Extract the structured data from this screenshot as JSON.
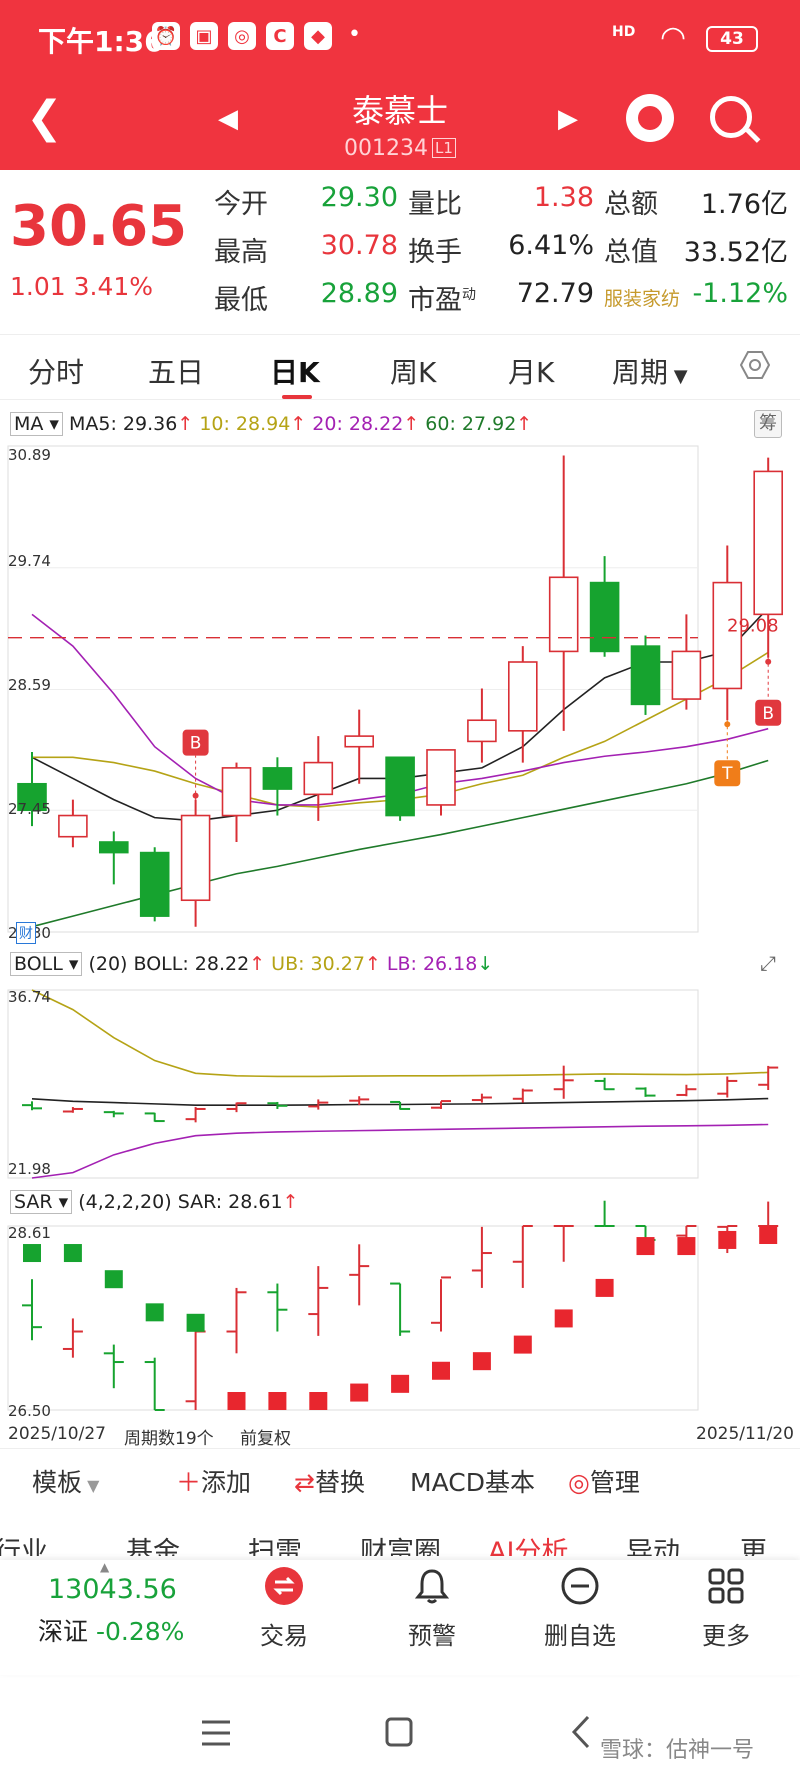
{
  "status_bar": {
    "time": "下午1:36",
    "network": "HD",
    "battery": "43"
  },
  "nav": {
    "title": "泰慕士",
    "code": "001234",
    "board_badge": "L1"
  },
  "quote": {
    "price": "30.65",
    "change": "1.01",
    "change_pct": "3.41%",
    "stats": [
      {
        "label": "今开",
        "value": "29.30",
        "color": "#18a23a"
      },
      {
        "label": "最高",
        "value": "30.78",
        "color": "#e8353c"
      },
      {
        "label": "最低",
        "value": "28.89",
        "color": "#18a23a"
      },
      {
        "label": "量比",
        "value": "1.38",
        "color": "#e8353c"
      },
      {
        "label": "换手",
        "value": "6.41%",
        "color": "#222222"
      },
      {
        "label": "市盈",
        "value": "72.79",
        "color": "#222222"
      },
      {
        "label": "总额",
        "value": "1.76亿",
        "color": "#222222"
      },
      {
        "label": "总值",
        "value": "33.52亿",
        "color": "#222222"
      },
      {
        "label": "服装家纺",
        "value": "-1.12%",
        "color": "#18a23a"
      }
    ],
    "pe_superscript": "动"
  },
  "tabs": [
    "分时",
    "五日",
    "日K",
    "周K",
    "月K",
    "周期"
  ],
  "active_tab": "日K",
  "main_chart": {
    "indicator": "MA",
    "ma": [
      {
        "label": "MA5: 29.36",
        "color": "#222222"
      },
      {
        "label": "10: 28.94",
        "color": "#b5a316"
      },
      {
        "label": "20: 28.22",
        "color": "#a321b3"
      },
      {
        "label": "60: 27.92",
        "color": "#1f7a2a"
      }
    ],
    "chip_button": "筹",
    "y_ticks": [
      "30.89",
      "29.74",
      "28.59",
      "27.45",
      "26.30"
    ],
    "price_line": "29.08",
    "signal_B": "B",
    "signal_T": "T",
    "fin_badge": "财"
  },
  "boll": {
    "label": "BOLL",
    "params": "(20)",
    "values": [
      {
        "label": "BOLL: 28.22",
        "color": "#222222"
      },
      {
        "label": "UB: 30.27",
        "color": "#b5a316"
      },
      {
        "label": "LB: 26.18",
        "color": "#a321b3"
      }
    ],
    "y_top": "36.74",
    "y_bottom": "21.98",
    "expand_icon": "expand-icon"
  },
  "sar": {
    "label": "SAR",
    "params": "(4,2,2,20)",
    "value": "SAR: 28.61",
    "y_top": "28.61",
    "y_bottom": "26.50"
  },
  "dates": {
    "start": "2025/10/27",
    "period_count": "周期数19个",
    "adjust": "前复权",
    "end": "2025/11/20"
  },
  "chart_data": {
    "type": "candlestick",
    "period": "日K",
    "x_range": [
      "2025/10/27",
      "2025/11/20"
    ],
    "ylim": [
      26.3,
      30.89
    ],
    "candles": [
      {
        "o": 27.7,
        "h": 28.0,
        "l": 27.3,
        "c": 27.45
      },
      {
        "o": 27.2,
        "h": 27.55,
        "l": 27.1,
        "c": 27.4
      },
      {
        "o": 27.15,
        "h": 27.25,
        "l": 26.75,
        "c": 27.05
      },
      {
        "o": 27.05,
        "h": 27.1,
        "l": 26.4,
        "c": 26.45
      },
      {
        "o": 26.6,
        "h": 27.55,
        "l": 26.35,
        "c": 27.4
      },
      {
        "o": 27.4,
        "h": 27.9,
        "l": 27.15,
        "c": 27.85
      },
      {
        "o": 27.85,
        "h": 27.95,
        "l": 27.4,
        "c": 27.65
      },
      {
        "o": 27.6,
        "h": 28.15,
        "l": 27.35,
        "c": 27.9
      },
      {
        "o": 28.05,
        "h": 28.4,
        "l": 27.7,
        "c": 28.15
      },
      {
        "o": 27.95,
        "h": 27.95,
        "l": 27.35,
        "c": 27.4
      },
      {
        "o": 27.5,
        "h": 28.0,
        "l": 27.4,
        "c": 28.02
      },
      {
        "o": 28.1,
        "h": 28.6,
        "l": 27.9,
        "c": 28.3
      },
      {
        "o": 28.2,
        "h": 29.0,
        "l": 27.9,
        "c": 28.85
      },
      {
        "o": 28.95,
        "h": 30.8,
        "l": 28.2,
        "c": 29.65
      },
      {
        "o": 29.6,
        "h": 29.85,
        "l": 28.9,
        "c": 28.95
      },
      {
        "o": 29.0,
        "h": 29.1,
        "l": 28.35,
        "c": 28.45
      },
      {
        "o": 28.5,
        "h": 29.3,
        "l": 28.4,
        "c": 28.95
      },
      {
        "o": 28.6,
        "h": 29.95,
        "l": 28.3,
        "c": 29.6
      },
      {
        "o": 29.3,
        "h": 30.78,
        "l": 28.89,
        "c": 30.65
      }
    ],
    "ma_lines": [
      {
        "name": "MA5",
        "color": "#222222",
        "values": [
          27.95,
          27.75,
          27.55,
          27.38,
          27.35,
          27.4,
          27.45,
          27.6,
          27.75,
          27.75,
          27.8,
          27.85,
          28.05,
          28.4,
          28.7,
          28.85,
          28.85,
          28.95,
          29.36
        ]
      },
      {
        "name": "MA10",
        "color": "#b5a316",
        "values": [
          27.95,
          27.95,
          27.9,
          27.82,
          27.7,
          27.6,
          27.5,
          27.48,
          27.52,
          27.55,
          27.6,
          27.7,
          27.78,
          27.95,
          28.1,
          28.3,
          28.5,
          28.7,
          28.94
        ]
      },
      {
        "name": "MA20",
        "color": "#a321b3",
        "values": [
          29.3,
          29.0,
          28.55,
          28.05,
          27.75,
          27.55,
          27.5,
          27.5,
          27.55,
          27.6,
          27.7,
          27.75,
          27.82,
          27.9,
          27.96,
          28.0,
          28.05,
          28.12,
          28.22
        ]
      },
      {
        "name": "MA60",
        "color": "#1f7a2a",
        "values": [
          26.35,
          26.45,
          26.55,
          26.65,
          26.75,
          26.85,
          26.92,
          27.0,
          27.08,
          27.15,
          27.22,
          27.3,
          27.38,
          27.46,
          27.54,
          27.62,
          27.7,
          27.8,
          27.92
        ]
      }
    ],
    "boll_lines": [
      {
        "name": "BOLL",
        "color": "#222222",
        "values": [
          28.2,
          28.0,
          27.9,
          27.8,
          27.7,
          27.7,
          27.7,
          27.72,
          27.75,
          27.75,
          27.78,
          27.8,
          27.85,
          27.9,
          27.95,
          28.0,
          28.05,
          28.12,
          28.22
        ]
      },
      {
        "name": "UB",
        "color": "#b5a316",
        "values": [
          36.74,
          35.2,
          33.0,
          31.2,
          30.2,
          30.0,
          29.95,
          29.95,
          29.98,
          30.0,
          30.0,
          30.02,
          30.05,
          30.1,
          30.15,
          30.12,
          30.1,
          30.15,
          30.27
        ]
      },
      {
        "name": "LB",
        "color": "#a321b3",
        "values": [
          21.98,
          22.4,
          23.8,
          24.7,
          25.3,
          25.5,
          25.6,
          25.65,
          25.7,
          25.75,
          25.8,
          25.85,
          25.9,
          25.95,
          26.0,
          26.05,
          26.08,
          26.12,
          26.18
        ]
      }
    ],
    "sar_points": [
      28.3,
      28.3,
      28.0,
      27.62,
      27.5,
      26.47,
      26.5,
      26.58,
      26.7,
      26.8,
      26.95,
      27.06,
      27.25,
      27.55,
      27.9,
      28.38,
      28.38,
      28.45,
      28.61
    ],
    "signals": [
      {
        "label": "B",
        "index": 4
      },
      {
        "label": "T",
        "index": 17
      },
      {
        "label": "B",
        "index": 18
      }
    ],
    "dashed_price": 29.08
  },
  "toolbar": {
    "template": "模板",
    "add": "添加",
    "replace": "替换",
    "macd": "MACD基本",
    "manage": "管理"
  },
  "subtabs": [
    "行业",
    "基金",
    "扫雷",
    "财富圈",
    "AI分析",
    "异动",
    "更"
  ],
  "bottom": {
    "index_value": "13043.56",
    "index_name": "深证",
    "index_change": "-0.28%",
    "items": [
      {
        "label": "交易",
        "icon": "trade-icon"
      },
      {
        "label": "预警",
        "icon": "bell-icon"
      },
      {
        "label": "删自选",
        "icon": "remove-icon"
      },
      {
        "label": "更多",
        "icon": "grid-icon"
      }
    ]
  },
  "watermark": "雪球：估神一号"
}
